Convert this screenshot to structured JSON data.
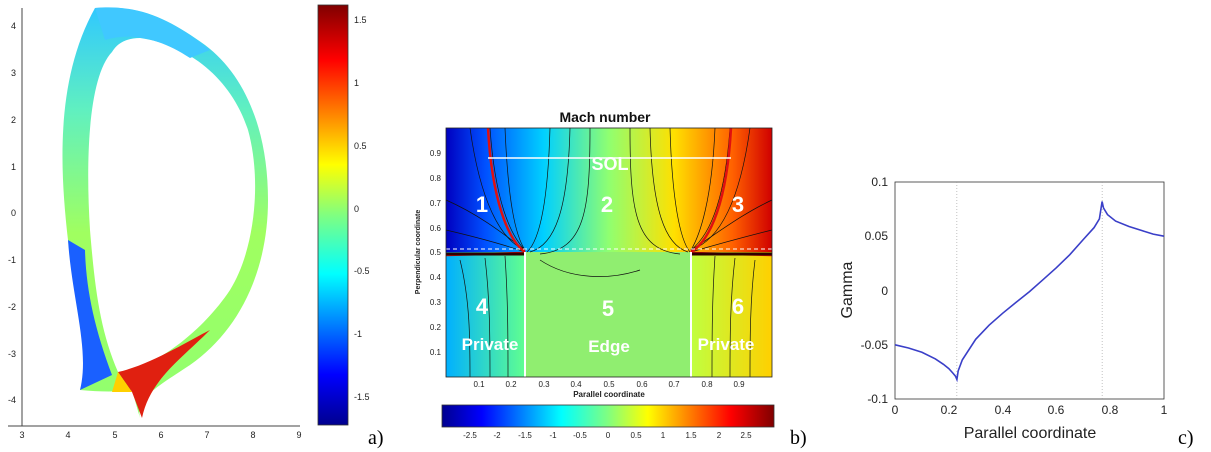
{
  "chart_data": [
    {
      "type": "heatmap",
      "panel_label": "a)",
      "xlim": [
        3,
        9
      ],
      "ylim": [
        -4.5,
        4.4
      ],
      "x_ticks": [
        "3",
        "4",
        "5",
        "6",
        "7",
        "8",
        "9"
      ],
      "y_ticks": [
        "4",
        "3",
        "2",
        "1",
        "0",
        "-1",
        "-2",
        "-3",
        "-4"
      ],
      "colorbar": {
        "range": [
          -1.7,
          1.65
        ],
        "ticks": [
          "1.5",
          "1",
          "0.5",
          "0",
          "-0.5",
          "-1",
          "-1.5"
        ],
        "tick_values": [
          1.5,
          1,
          0.5,
          0,
          -0.5,
          -1,
          -1.5
        ]
      }
    },
    {
      "type": "heatmap",
      "panel_label": "b)",
      "title": "Mach number",
      "xlabel": "Parallel coordinate",
      "ylabel": "Perpendicular coordinate",
      "xlim": [
        0,
        1
      ],
      "ylim": [
        0,
        1
      ],
      "x_ticks": [
        "0.1",
        "0.2",
        "0.3",
        "0.4",
        "0.5",
        "0.6",
        "0.7",
        "0.8",
        "0.9"
      ],
      "y_ticks": [
        "0.9",
        "0.8",
        "0.7",
        "0.6",
        "0.5",
        "0.4",
        "0.3",
        "0.2",
        "0.1"
      ],
      "separatrix_y": 0.5,
      "x_points": [
        0.25,
        0.75
      ],
      "region_labels": {
        "sol": "SOL",
        "r1": "1",
        "r2": "2",
        "r3": "3",
        "r4": "4",
        "r5": "5",
        "r6": "6",
        "private_left": "Private",
        "edge": "Edge",
        "private_right": "Private"
      },
      "colorbar": {
        "range": [
          -3,
          3
        ],
        "ticks": [
          "-2.5",
          "-2",
          "-1.5",
          "-1",
          "-0.5",
          "0",
          "0.5",
          "1",
          "1.5",
          "2",
          "2.5"
        ],
        "tick_values": [
          -2.5,
          -2,
          -1.5,
          -1,
          -0.5,
          0,
          0.5,
          1,
          1.5,
          2,
          2.5
        ]
      }
    },
    {
      "type": "line",
      "panel_label": "c)",
      "xlabel": "Parallel coordinate",
      "ylabel": "Gamma",
      "xlim": [
        0,
        1
      ],
      "ylim": [
        -0.1,
        0.1
      ],
      "x_ticks": [
        "0",
        "0.2",
        "0.4",
        "0.6",
        "0.8",
        "1"
      ],
      "y_ticks": [
        "0.1",
        "0.05",
        "0",
        "-0.05",
        "-0.1"
      ],
      "vlines": [
        0.23,
        0.77
      ],
      "series": [
        {
          "color": "#3a3fc8",
          "x": [
            0,
            0.05,
            0.1,
            0.15,
            0.18,
            0.2,
            0.215,
            0.225,
            0.23,
            0.235,
            0.25,
            0.3,
            0.35,
            0.4,
            0.45,
            0.5,
            0.55,
            0.6,
            0.65,
            0.7,
            0.74,
            0.76,
            0.77,
            0.775,
            0.79,
            0.82,
            0.87,
            0.92,
            0.96,
            1.0
          ],
          "y": [
            -0.05,
            -0.053,
            -0.057,
            -0.063,
            -0.068,
            -0.072,
            -0.076,
            -0.079,
            -0.082,
            -0.074,
            -0.064,
            -0.045,
            -0.032,
            -0.021,
            -0.011,
            -0.001,
            0.01,
            0.021,
            0.033,
            0.047,
            0.058,
            0.066,
            0.082,
            0.076,
            0.07,
            0.064,
            0.059,
            0.055,
            0.052,
            0.05
          ]
        }
      ]
    }
  ]
}
